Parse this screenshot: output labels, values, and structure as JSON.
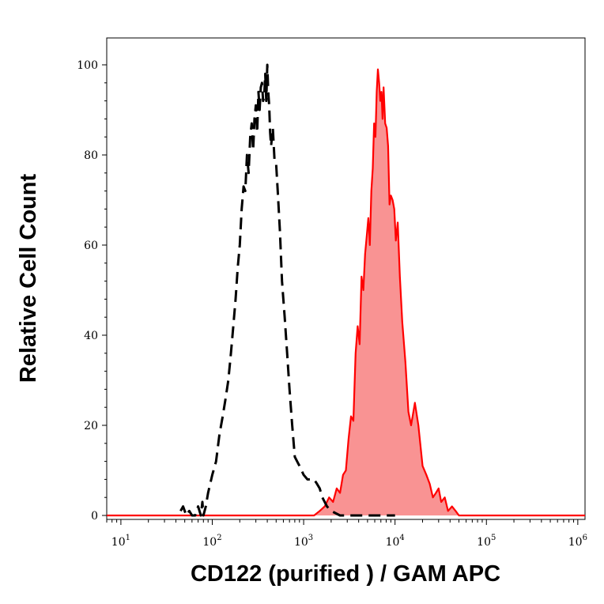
{
  "chart_data": {
    "type": "area",
    "xlabel": "CD122 (purified ) / GAM APC",
    "ylabel": "Relative Cell Count",
    "x_scale": "log",
    "xlim": [
      7,
      1200000
    ],
    "ylim": [
      -1,
      100
    ],
    "grid": false,
    "legend": "none",
    "y_ticks": [
      0,
      20,
      40,
      60,
      80,
      100
    ],
    "y_tick_labels": [
      "0",
      "20",
      "40",
      "60",
      "80",
      "100"
    ],
    "x_ticks": [
      {
        "value": 10,
        "base": "10",
        "exp": "1"
      },
      {
        "value": 100,
        "base": "10",
        "exp": "2"
      },
      {
        "value": 1000,
        "base": "10",
        "exp": "3"
      },
      {
        "value": 10000,
        "base": "10",
        "exp": "4"
      },
      {
        "value": 100000,
        "base": "10",
        "exp": "5"
      },
      {
        "value": 1000000,
        "base": "10",
        "exp": "6"
      }
    ],
    "series": [
      {
        "style": "dashed",
        "color": "#000000",
        "fill": "none",
        "x": [
          45,
          48,
          52,
          56,
          60,
          65,
          70,
          75,
          78,
          80,
          85,
          90,
          100,
          110,
          120,
          130,
          140,
          150,
          160,
          170,
          180,
          190,
          200,
          210,
          220,
          230,
          240,
          250,
          260,
          270,
          280,
          290,
          300,
          310,
          320,
          330,
          340,
          350,
          360,
          370,
          380,
          390,
          400,
          410,
          420,
          430,
          440,
          460,
          480,
          500,
          520,
          550,
          580,
          620,
          660,
          700,
          750,
          800,
          900,
          1000,
          1100,
          1200,
          1300,
          1400,
          1500,
          1600,
          1700,
          1800,
          2000,
          2500,
          3000,
          4000,
          6000,
          8000,
          10000
        ],
        "y": [
          1,
          2,
          0,
          1,
          0,
          0,
          2,
          0,
          3,
          0,
          2,
          5,
          9,
          12,
          18,
          22,
          26,
          30,
          36,
          42,
          48,
          55,
          60,
          68,
          73,
          72,
          80,
          76,
          84,
          87,
          81,
          88,
          91,
          85,
          94,
          90,
          95,
          96,
          92,
          93,
          98,
          92,
          100,
          94,
          91,
          85,
          82,
          86,
          79,
          78,
          72,
          63,
          52,
          44,
          36,
          28,
          20,
          13,
          11,
          9,
          8,
          8,
          8,
          7,
          6,
          4,
          3,
          2,
          1,
          0,
          0,
          0,
          0,
          0,
          0
        ]
      },
      {
        "style": "solid",
        "color": "#ff0000",
        "fill": "#f99393",
        "x": [
          7,
          100,
          1000,
          1300,
          1500,
          1700,
          1900,
          2100,
          2300,
          2500,
          2700,
          2900,
          3100,
          3300,
          3500,
          3700,
          3900,
          4100,
          4300,
          4500,
          4700,
          4900,
          5100,
          5300,
          5500,
          5700,
          5900,
          6100,
          6300,
          6500,
          6700,
          6900,
          7100,
          7300,
          7500,
          7800,
          8100,
          8400,
          8700,
          9000,
          9400,
          9800,
          10200,
          10700,
          11300,
          12000,
          13000,
          14000,
          15000,
          16500,
          18000,
          20000,
          22000,
          24000,
          26000,
          28000,
          30000,
          32000,
          35000,
          38000,
          42000,
          46000,
          50000,
          55000,
          60000,
          70000,
          100000,
          1000000,
          1200000
        ],
        "y": [
          0,
          0,
          0,
          0,
          1,
          2,
          4,
          3,
          6,
          5,
          9,
          10,
          17,
          22,
          21,
          36,
          42,
          38,
          53,
          50,
          58,
          62,
          66,
          60,
          72,
          77,
          87,
          84,
          94,
          99,
          96,
          92,
          94,
          88,
          95,
          87,
          86,
          82,
          69,
          71,
          70,
          68,
          61,
          65,
          53,
          43,
          34,
          23,
          20,
          25,
          20,
          11,
          9,
          7,
          4,
          5,
          6,
          3,
          4,
          1,
          2,
          1,
          0,
          0,
          0,
          0,
          0,
          0,
          0
        ]
      }
    ]
  }
}
